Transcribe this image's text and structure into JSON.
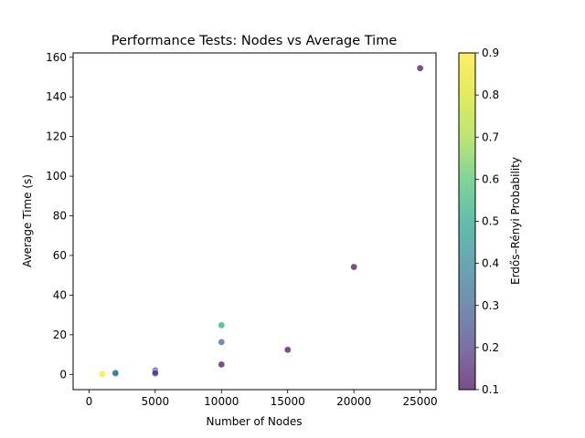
{
  "chart_data": {
    "type": "scatter",
    "title": "Performance Tests: Nodes vs Average Time",
    "xlabel": "Number of Nodes",
    "ylabel": "Average Time (s)",
    "xlim": [
      -1200,
      26200
    ],
    "ylim": [
      -7.7,
      162.2
    ],
    "x_ticks": [
      0,
      5000,
      10000,
      15000,
      20000,
      25000
    ],
    "y_ticks": [
      0,
      20,
      40,
      60,
      80,
      100,
      120,
      140,
      160
    ],
    "grid": false,
    "colormap": "viridis",
    "colorbar": {
      "label": "Erdős–Rényi Probability",
      "range": [
        0.1,
        0.9
      ],
      "ticks": [
        0.1,
        0.2,
        0.3,
        0.4,
        0.5,
        0.6,
        0.7,
        0.8,
        0.9
      ],
      "tick_labels": [
        "0.1",
        "0.2",
        "0.3",
        "0.4",
        "0.5",
        "0.6",
        "0.7",
        "0.8",
        "0.9"
      ]
    },
    "points": [
      {
        "x": 1000,
        "y": 0.2,
        "c": 0.9
      },
      {
        "x": 2000,
        "y": 1.0,
        "c": 0.5
      },
      {
        "x": 2000,
        "y": 0.5,
        "c": 0.3
      },
      {
        "x": 5000,
        "y": 2.0,
        "c": 0.2
      },
      {
        "x": 5000,
        "y": 1.2,
        "c": 0.3
      },
      {
        "x": 5000,
        "y": 0.5,
        "c": 0.2
      },
      {
        "x": 10000,
        "y": 24.8,
        "c": 0.5
      },
      {
        "x": 10000,
        "y": 16.3,
        "c": 0.3
      },
      {
        "x": 10000,
        "y": 5.0,
        "c": 0.1
      },
      {
        "x": 15000,
        "y": 12.4,
        "c": 0.1
      },
      {
        "x": 20000,
        "y": 54.2,
        "c": 0.1
      },
      {
        "x": 25000,
        "y": 154.5,
        "c": 0.1
      }
    ]
  }
}
